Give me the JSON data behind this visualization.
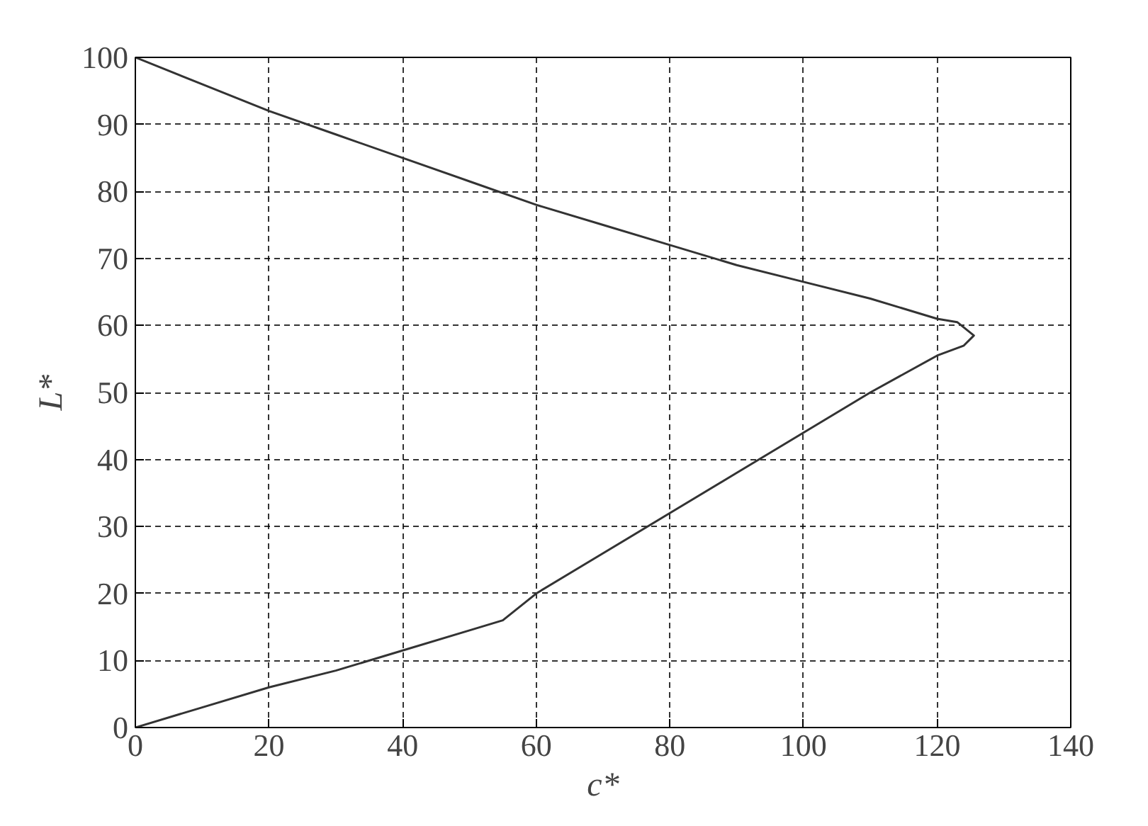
{
  "chart_data": {
    "type": "line",
    "xlabel": "c*",
    "ylabel": "L*",
    "xlim": [
      0,
      140
    ],
    "ylim": [
      0,
      100
    ],
    "xticks": [
      0,
      20,
      40,
      60,
      80,
      100,
      120,
      140
    ],
    "yticks": [
      0,
      10,
      20,
      30,
      40,
      50,
      60,
      70,
      80,
      90,
      100
    ],
    "grid": true,
    "marker": "none",
    "line_style": "solid",
    "series": [
      {
        "color": "#333333",
        "x": [
          0,
          10,
          20,
          30,
          40,
          50,
          60,
          70,
          80,
          90,
          100,
          110,
          120,
          123,
          125.5,
          124,
          120,
          110,
          100,
          90,
          80,
          70,
          60,
          55,
          50,
          40,
          30,
          20,
          10,
          0
        ],
        "values": [
          100,
          96,
          92,
          88.5,
          85,
          81.5,
          78,
          75,
          72,
          69,
          66.5,
          64,
          61,
          60.5,
          58.5,
          57,
          55.5,
          50,
          44,
          38,
          32,
          26,
          20,
          16,
          14.5,
          11.5,
          8.5,
          6,
          3,
          0
        ]
      }
    ]
  }
}
